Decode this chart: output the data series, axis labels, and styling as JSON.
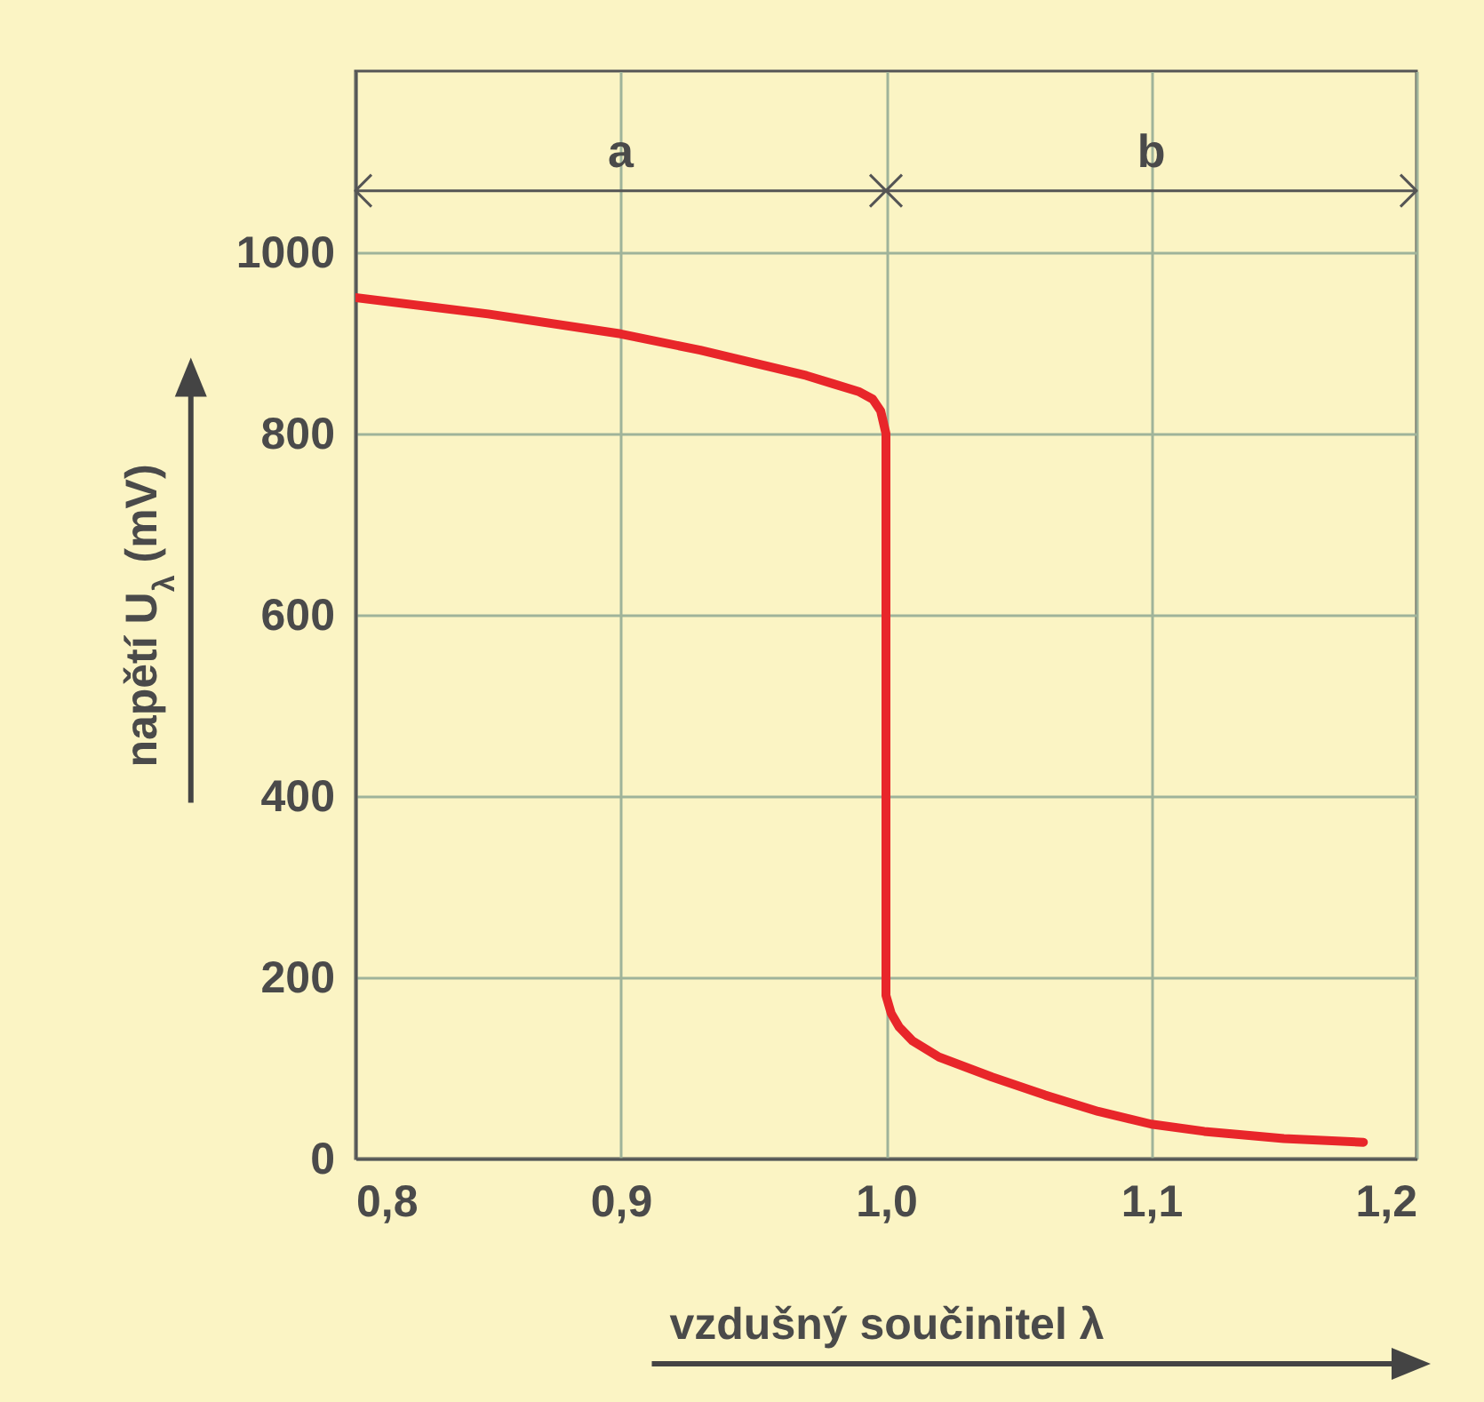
{
  "chart_data": {
    "type": "line",
    "xlabel": "vzdušný součinitel λ",
    "ylabel": "napětí U$_{λ}$  (mV)",
    "xlim": [
      0.8,
      1.2
    ],
    "ylim": [
      0,
      1200
    ],
    "xticks": [
      {
        "value": 0.8,
        "label": "0,8"
      },
      {
        "value": 0.9,
        "label": "0,9"
      },
      {
        "value": 1.0,
        "label": "1,0"
      },
      {
        "value": 1.1,
        "label": "1,1"
      },
      {
        "value": 1.2,
        "label": "1,2"
      }
    ],
    "yticks": [
      0,
      200,
      400,
      600,
      800,
      1000
    ],
    "grid": true,
    "annotations": [
      "a",
      "b"
    ],
    "series": [
      {
        "color": "#e8262a",
        "x": [
          0.8,
          0.85,
          0.9,
          0.93,
          0.95,
          0.97,
          0.98,
          0.99,
          0.995,
          0.998,
          1.0,
          1.0,
          1.0,
          1.002,
          1.005,
          1.01,
          1.02,
          1.04,
          1.06,
          1.08,
          1.1,
          1.12,
          1.15,
          1.18
        ],
        "values": [
          950,
          932,
          910,
          892,
          878,
          864,
          855,
          846,
          838,
          825,
          800,
          500,
          180,
          160,
          145,
          130,
          112,
          90,
          70,
          52,
          38,
          30,
          22,
          18
        ]
      }
    ]
  }
}
